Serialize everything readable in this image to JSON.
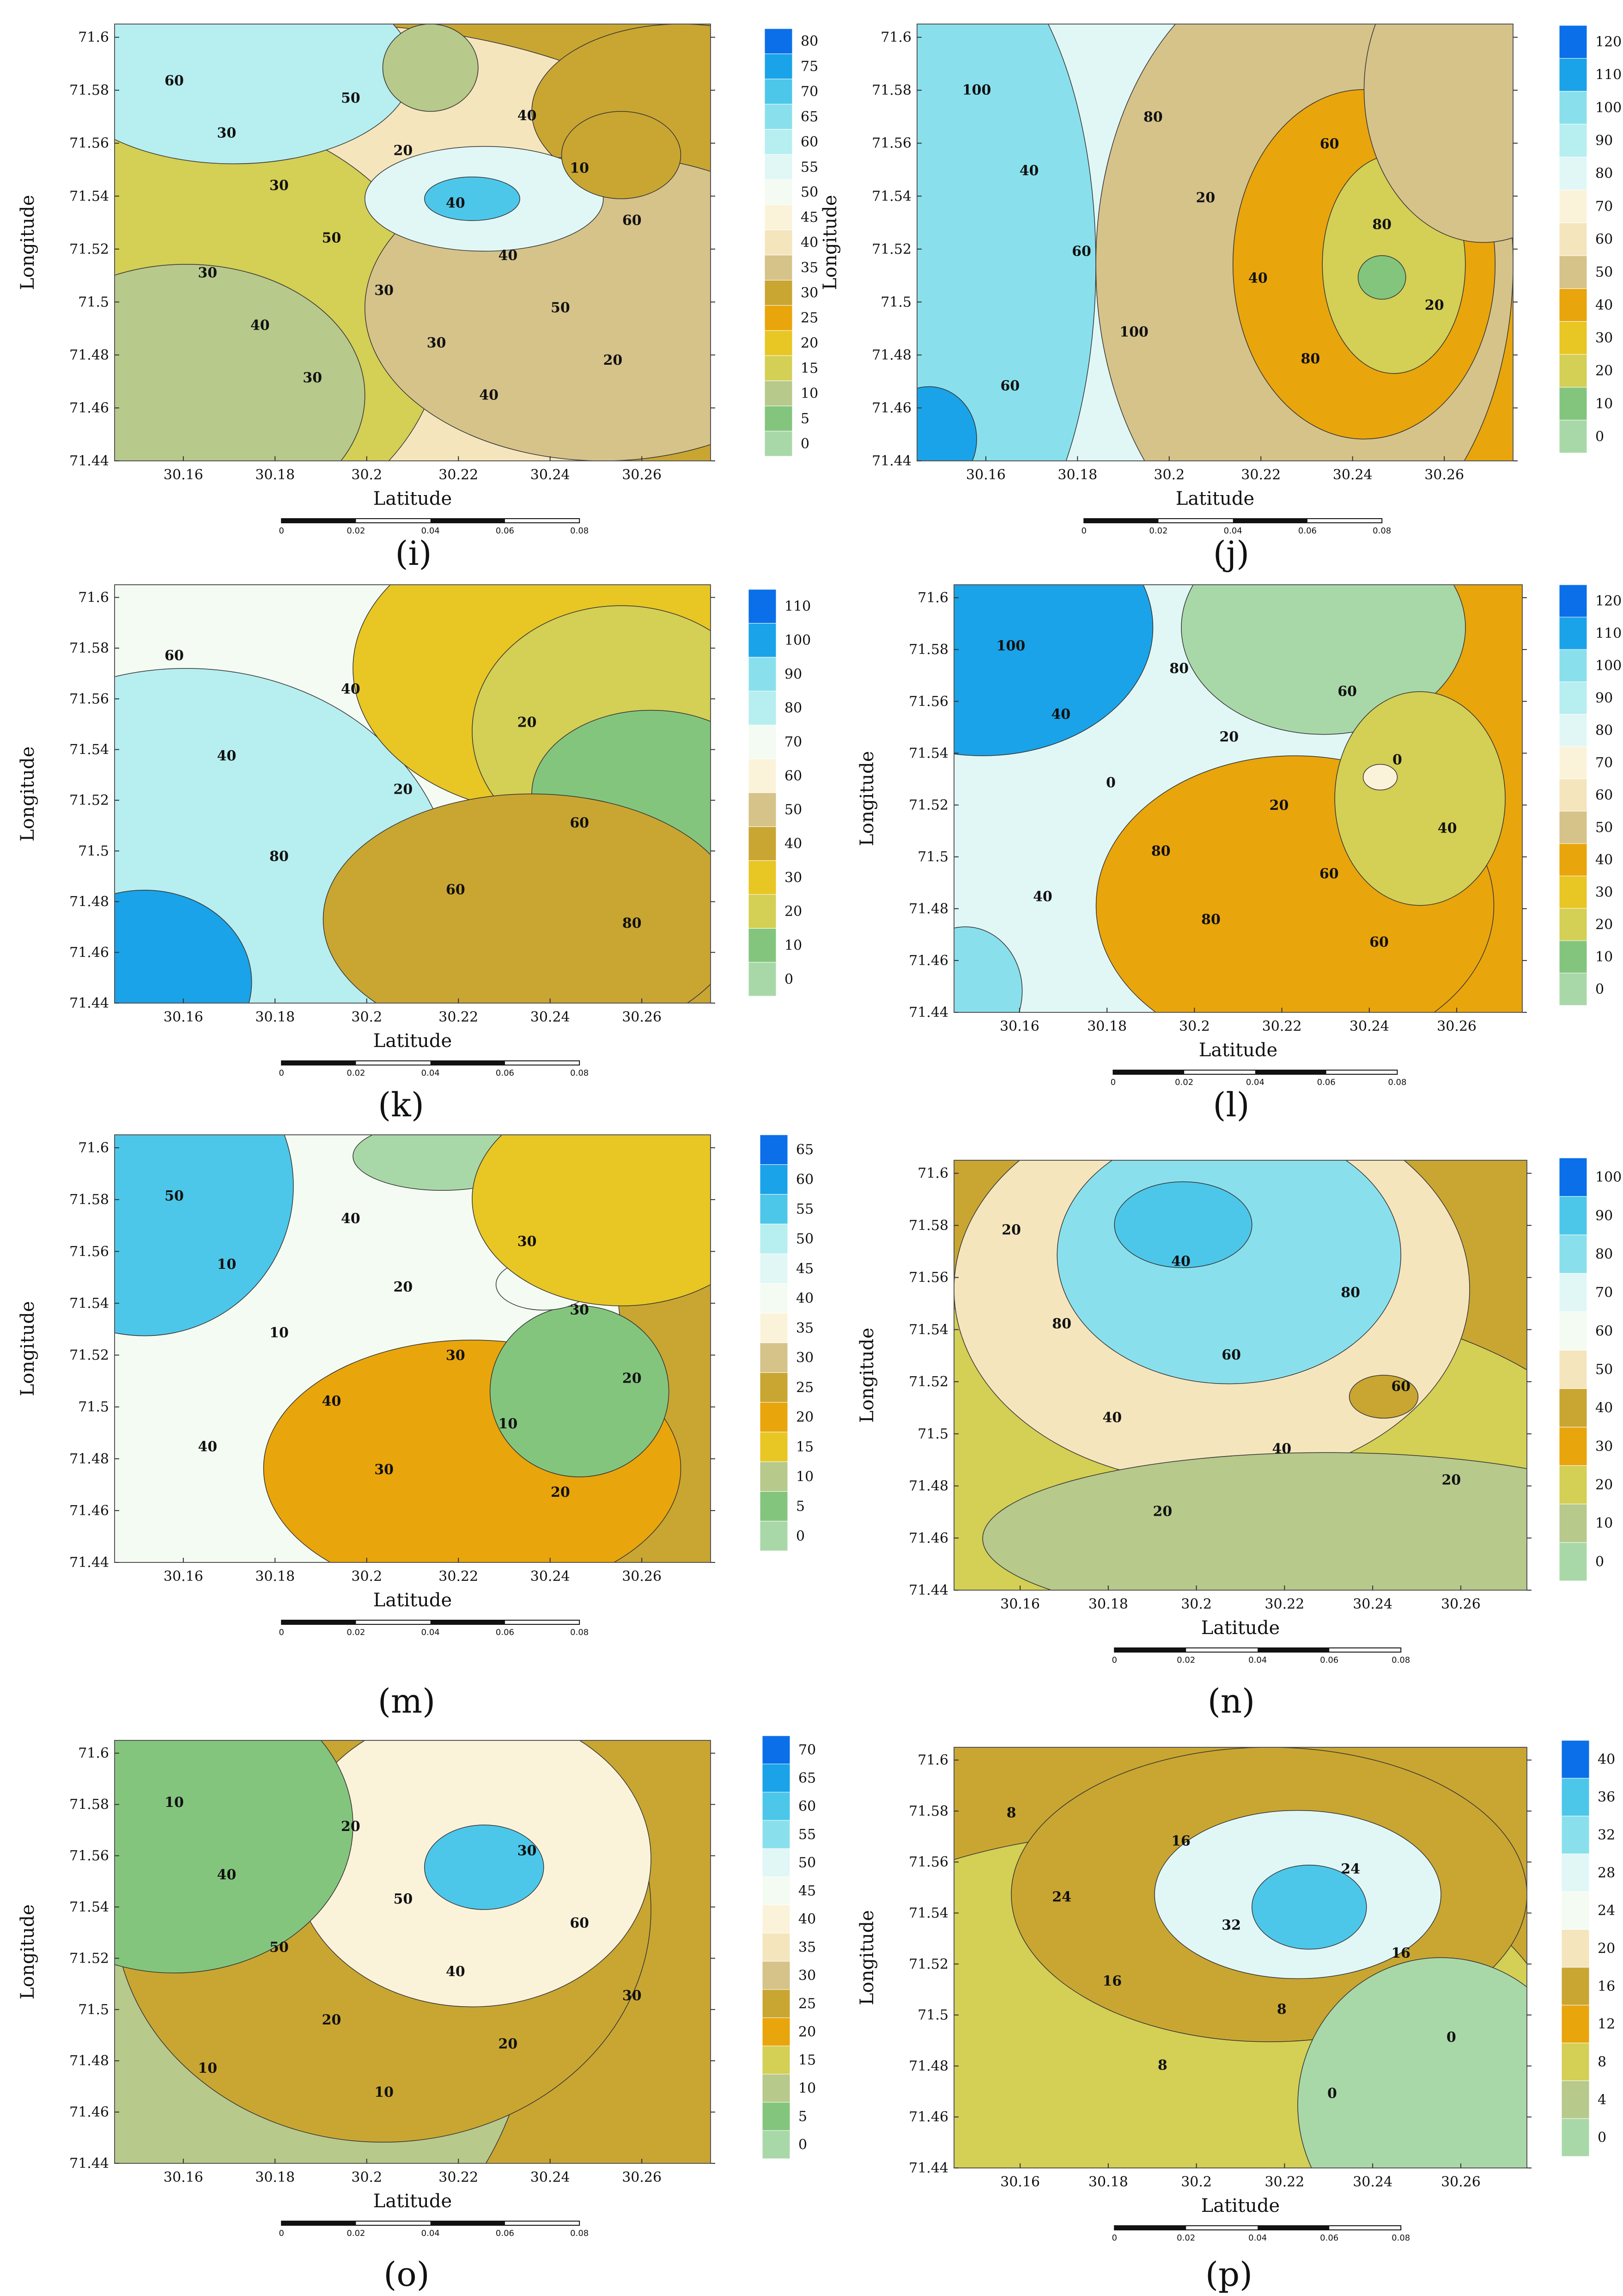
{
  "chart_data": [
    {
      "panel": "(i)",
      "type": "contour",
      "xlabel": "Latitude",
      "ylabel": "Longitude",
      "xlim": [
        30.145,
        30.275
      ],
      "ylim": [
        71.44,
        71.605
      ],
      "x_ticks": [
        "30.16",
        "30.18",
        "30.2",
        "30.22",
        "30.24",
        "30.26"
      ],
      "y_ticks": [
        "71.44",
        "71.46",
        "71.48",
        "71.5",
        "71.52",
        "71.54",
        "71.56",
        "71.58",
        "71.6"
      ],
      "colorbar": [
        "0",
        "5",
        "10",
        "15",
        "20",
        "25",
        "30",
        "35",
        "40",
        "45",
        "50",
        "55",
        "60",
        "65",
        "70",
        "75",
        "80"
      ],
      "contour_labels": [
        "60",
        "50",
        "40",
        "30",
        "20",
        "10",
        "30",
        "40",
        "60",
        "50",
        "40",
        "30",
        "30",
        "50",
        "40",
        "30",
        "20",
        "30",
        "40"
      ],
      "scale_bar": [
        "0",
        "0.02",
        "0.04",
        "0.06",
        "0.08"
      ]
    },
    {
      "panel": "(j)",
      "type": "contour",
      "xlabel": "Latitude",
      "ylabel": "Longitude",
      "xlim": [
        30.145,
        30.275
      ],
      "ylim": [
        71.44,
        71.605
      ],
      "x_ticks": [
        "30.16",
        "30.18",
        "30.2",
        "30.22",
        "30.24",
        "30.26"
      ],
      "y_ticks": [
        "71.44",
        "71.46",
        "71.48",
        "71.5",
        "71.52",
        "71.54",
        "71.56",
        "71.58",
        "71.6"
      ],
      "colorbar": [
        "0",
        "10",
        "20",
        "30",
        "40",
        "50",
        "60",
        "70",
        "80",
        "90",
        "100",
        "110",
        "120"
      ],
      "contour_labels": [
        "100",
        "80",
        "60",
        "40",
        "20",
        "80",
        "60",
        "40",
        "20",
        "100",
        "80",
        "60"
      ],
      "scale_bar": [
        "0",
        "0.02",
        "0.04",
        "0.06",
        "0.08"
      ]
    },
    {
      "panel": "(k)",
      "type": "contour",
      "xlabel": "Latitude",
      "ylabel": "Longitude",
      "xlim": [
        30.145,
        30.275
      ],
      "ylim": [
        71.44,
        71.605
      ],
      "x_ticks": [
        "30.16",
        "30.18",
        "30.2",
        "30.22",
        "30.24",
        "30.26"
      ],
      "y_ticks": [
        "71.44",
        "71.46",
        "71.48",
        "71.5",
        "71.52",
        "71.54",
        "71.56",
        "71.58",
        "71.6"
      ],
      "colorbar": [
        "0",
        "10",
        "20",
        "30",
        "40",
        "50",
        "60",
        "70",
        "80",
        "90",
        "100",
        "110"
      ],
      "contour_labels": [
        "60",
        "40",
        "20",
        "40",
        "20",
        "60",
        "80",
        "60",
        "80"
      ],
      "scale_bar": [
        "0",
        "0.02",
        "0.04",
        "0.06",
        "0.08"
      ]
    },
    {
      "panel": "(l)",
      "type": "contour",
      "xlabel": "Latitude",
      "ylabel": "Longitude",
      "xlim": [
        30.145,
        30.275
      ],
      "ylim": [
        71.44,
        71.605
      ],
      "x_ticks": [
        "30.16",
        "30.18",
        "30.2",
        "30.22",
        "30.24",
        "30.26"
      ],
      "y_ticks": [
        "71.44",
        "71.46",
        "71.48",
        "71.5",
        "71.52",
        "71.54",
        "71.56",
        "71.58",
        "71.6"
      ],
      "colorbar": [
        "0",
        "10",
        "20",
        "30",
        "40",
        "50",
        "60",
        "70",
        "80",
        "90",
        "100",
        "110",
        "120"
      ],
      "contour_labels": [
        "100",
        "80",
        "60",
        "40",
        "20",
        "0",
        "0",
        "20",
        "40",
        "80",
        "60",
        "40",
        "80",
        "60"
      ],
      "scale_bar": [
        "0",
        "0.02",
        "0.04",
        "0.06",
        "0.08"
      ]
    },
    {
      "panel": "(m)",
      "type": "contour",
      "xlabel": "Latitude",
      "ylabel": "Longitude",
      "xlim": [
        30.145,
        30.275
      ],
      "ylim": [
        71.44,
        71.605
      ],
      "x_ticks": [
        "30.16",
        "30.18",
        "30.2",
        "30.22",
        "30.24",
        "30.26"
      ],
      "y_ticks": [
        "71.44",
        "71.46",
        "71.48",
        "71.5",
        "71.52",
        "71.54",
        "71.56",
        "71.58",
        "71.6"
      ],
      "colorbar": [
        "0",
        "5",
        "10",
        "15",
        "20",
        "25",
        "30",
        "35",
        "40",
        "45",
        "50",
        "55",
        "60",
        "65"
      ],
      "contour_labels": [
        "50",
        "40",
        "30",
        "10",
        "20",
        "30",
        "10",
        "30",
        "20",
        "40",
        "10",
        "40",
        "30",
        "20"
      ],
      "scale_bar": [
        "0",
        "0.02",
        "0.04",
        "0.06",
        "0.08"
      ]
    },
    {
      "panel": "(n)",
      "type": "contour",
      "xlabel": "Latitude",
      "ylabel": "Longitude",
      "xlim": [
        30.145,
        30.275
      ],
      "ylim": [
        71.44,
        71.605
      ],
      "x_ticks": [
        "30.16",
        "30.18",
        "30.2",
        "30.22",
        "30.24",
        "30.26"
      ],
      "y_ticks": [
        "71.44",
        "71.46",
        "71.48",
        "71.5",
        "71.52",
        "71.54",
        "71.56",
        "71.58",
        "71.6"
      ],
      "colorbar": [
        "0",
        "10",
        "20",
        "30",
        "40",
        "50",
        "60",
        "70",
        "80",
        "90",
        "100"
      ],
      "contour_labels": [
        "20",
        "40",
        "80",
        "80",
        "60",
        "60",
        "40",
        "40",
        "20",
        "20"
      ],
      "scale_bar": [
        "0",
        "0.02",
        "0.04",
        "0.06",
        "0.08"
      ]
    },
    {
      "panel": "(o)",
      "type": "contour",
      "xlabel": "Latitude",
      "ylabel": "Longitude",
      "xlim": [
        30.145,
        30.275
      ],
      "ylim": [
        71.44,
        71.605
      ],
      "x_ticks": [
        "30.16",
        "30.18",
        "30.2",
        "30.22",
        "30.24",
        "30.26"
      ],
      "y_ticks": [
        "71.44",
        "71.46",
        "71.48",
        "71.5",
        "71.52",
        "71.54",
        "71.56",
        "71.58",
        "71.6"
      ],
      "colorbar": [
        "0",
        "5",
        "10",
        "15",
        "20",
        "25",
        "30",
        "35",
        "40",
        "45",
        "50",
        "55",
        "60",
        "65",
        "70"
      ],
      "contour_labels": [
        "10",
        "20",
        "30",
        "40",
        "50",
        "60",
        "50",
        "40",
        "30",
        "20",
        "20",
        "10",
        "10"
      ],
      "scale_bar": [
        "0",
        "0.02",
        "0.04",
        "0.06",
        "0.08"
      ]
    },
    {
      "panel": "(p)",
      "type": "contour",
      "xlabel": "Latitude",
      "ylabel": "Longitude",
      "xlim": [
        30.145,
        30.275
      ],
      "ylim": [
        71.44,
        71.605
      ],
      "x_ticks": [
        "30.16",
        "30.18",
        "30.2",
        "30.22",
        "30.24",
        "30.26"
      ],
      "y_ticks": [
        "71.44",
        "71.46",
        "71.48",
        "71.5",
        "71.52",
        "71.54",
        "71.56",
        "71.58",
        "71.6"
      ],
      "colorbar": [
        "0",
        "4",
        "8",
        "12",
        "16",
        "20",
        "24",
        "28",
        "32",
        "36",
        "40"
      ],
      "contour_labels": [
        "8",
        "16",
        "24",
        "24",
        "32",
        "16",
        "16",
        "8",
        "0",
        "8",
        "0"
      ],
      "scale_bar": [
        "0",
        "0.02",
        "0.04",
        "0.06",
        "0.08"
      ]
    }
  ]
}
